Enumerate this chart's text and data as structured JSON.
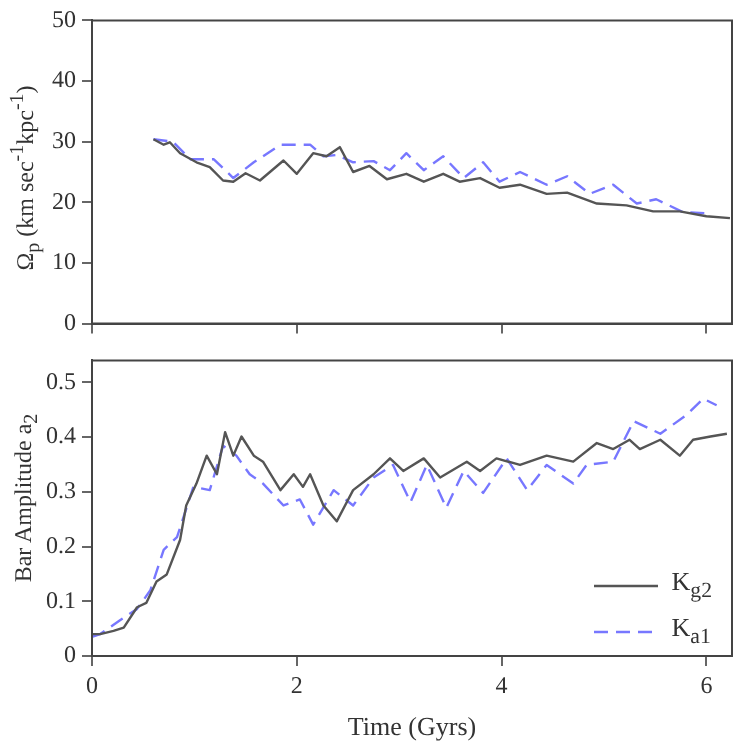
{
  "chart_data": [
    {
      "type": "line",
      "ylabel": "Ω$_{p}$ (km sec$^{-1}$kpc$^{-1}$)",
      "xlim": [
        0,
        6.25
      ],
      "xticks": [
        0,
        2,
        4,
        6
      ],
      "ylim": [
        0,
        50
      ],
      "yticks": [
        0,
        10,
        20,
        30,
        40,
        50
      ],
      "tick_labels": "y",
      "grid": false,
      "marker": "none",
      "series": [
        {
          "color": "#555555",
          "line_style": "solid",
          "x": [
            0.6,
            0.7,
            0.76,
            0.86,
            1.02,
            1.15,
            1.28,
            1.38,
            1.5,
            1.64,
            1.87,
            2.0,
            2.16,
            2.29,
            2.42,
            2.55,
            2.71,
            2.88,
            3.07,
            3.24,
            3.43,
            3.59,
            3.79,
            3.98,
            4.18,
            4.44,
            4.64,
            4.93,
            5.22,
            5.48,
            5.74,
            6.0,
            6.23
          ],
          "values": [
            30.4,
            29.5,
            29.9,
            28.1,
            26.6,
            25.8,
            23.6,
            23.4,
            24.8,
            23.6,
            26.9,
            24.7,
            28.1,
            27.6,
            29.1,
            25,
            26,
            23.8,
            24.7,
            23.4,
            24.7,
            23.4,
            24,
            22.4,
            22.9,
            21.4,
            21.6,
            19.8,
            19.5,
            18.5,
            18.5,
            17.7,
            17.4
          ]
        },
        {
          "color": "#7777ff",
          "line_style": "dashed",
          "x": [
            0.6,
            0.79,
            0.96,
            1.19,
            1.38,
            1.58,
            1.84,
            2.13,
            2.26,
            2.39,
            2.55,
            2.75,
            2.91,
            3.07,
            3.24,
            3.43,
            3.63,
            3.82,
            3.98,
            4.18,
            4.44,
            4.64,
            4.86,
            5.09,
            5.32,
            5.51,
            5.77,
            6.0
          ],
          "values": [
            30.4,
            30,
            27.1,
            27.1,
            24,
            26.6,
            29.5,
            29.5,
            27.6,
            27.8,
            26.6,
            26.8,
            25.3,
            28.1,
            25.3,
            27.6,
            24,
            26.6,
            23.4,
            25,
            22.9,
            24.3,
            21.4,
            22.9,
            19.8,
            20.5,
            18.4,
            18.2
          ]
        }
      ]
    },
    {
      "type": "line",
      "xlabel": "Time (Gyrs)",
      "ylabel": "Bar Amplitude a$_{2}$",
      "xlim": [
        0,
        6.25
      ],
      "xticks": [
        0,
        2,
        4,
        6
      ],
      "ylim": [
        0,
        0.54
      ],
      "yticks": [
        0,
        0.1,
        0.2,
        0.3,
        0.4,
        0.5
      ],
      "grid": false,
      "marker": "none",
      "legend": "bottom right",
      "series": [
        {
          "name": "K$_{g2}$",
          "color": "#555555",
          "line_style": "solid",
          "x": [
            0,
            0.08,
            0.21,
            0.31,
            0.44,
            0.53,
            0.63,
            0.73,
            0.86,
            0.92,
            1.02,
            1.12,
            1.22,
            1.3,
            1.38,
            1.46,
            1.58,
            1.67,
            1.84,
            1.97,
            2.06,
            2.13,
            2.26,
            2.39,
            2.55,
            2.75,
            2.91,
            3.04,
            3.24,
            3.4,
            3.66,
            3.79,
            3.95,
            4.18,
            4.44,
            4.7,
            4.93,
            5.09,
            5.25,
            5.35,
            5.55,
            5.74,
            5.87,
            6.04,
            6.2
          ],
          "values": [
            0.04,
            0.04,
            0.046,
            0.052,
            0.089,
            0.097,
            0.136,
            0.149,
            0.212,
            0.275,
            0.315,
            0.366,
            0.332,
            0.409,
            0.366,
            0.401,
            0.366,
            0.355,
            0.303,
            0.332,
            0.309,
            0.332,
            0.275,
            0.246,
            0.303,
            0.332,
            0.361,
            0.338,
            0.361,
            0.326,
            0.355,
            0.338,
            0.361,
            0.349,
            0.366,
            0.355,
            0.389,
            0.378,
            0.395,
            0.378,
            0.395,
            0.366,
            0.395,
            0.401,
            0.406
          ]
        },
        {
          "name": "K$_{a1}$",
          "color": "#7777ff",
          "line_style": "dashed",
          "x": [
            0,
            0.08,
            0.27,
            0.44,
            0.57,
            0.7,
            0.83,
            0.99,
            1.15,
            1.28,
            1.41,
            1.54,
            1.67,
            1.87,
            2.03,
            2.16,
            2.36,
            2.55,
            2.75,
            2.94,
            3.11,
            3.27,
            3.46,
            3.63,
            3.82,
            4.05,
            4.25,
            4.44,
            4.7,
            4.83,
            5.09,
            5.29,
            5.55,
            5.81,
            5.97,
            6.1
          ],
          "values": [
            0.035,
            0.04,
            0.065,
            0.086,
            0.12,
            0.194,
            0.217,
            0.309,
            0.303,
            0.384,
            0.366,
            0.332,
            0.315,
            0.275,
            0.286,
            0.24,
            0.303,
            0.275,
            0.326,
            0.349,
            0.281,
            0.349,
            0.271,
            0.338,
            0.298,
            0.361,
            0.303,
            0.349,
            0.315,
            0.349,
            0.355,
            0.429,
            0.406,
            0.441,
            0.47,
            0.458
          ]
        }
      ]
    }
  ]
}
